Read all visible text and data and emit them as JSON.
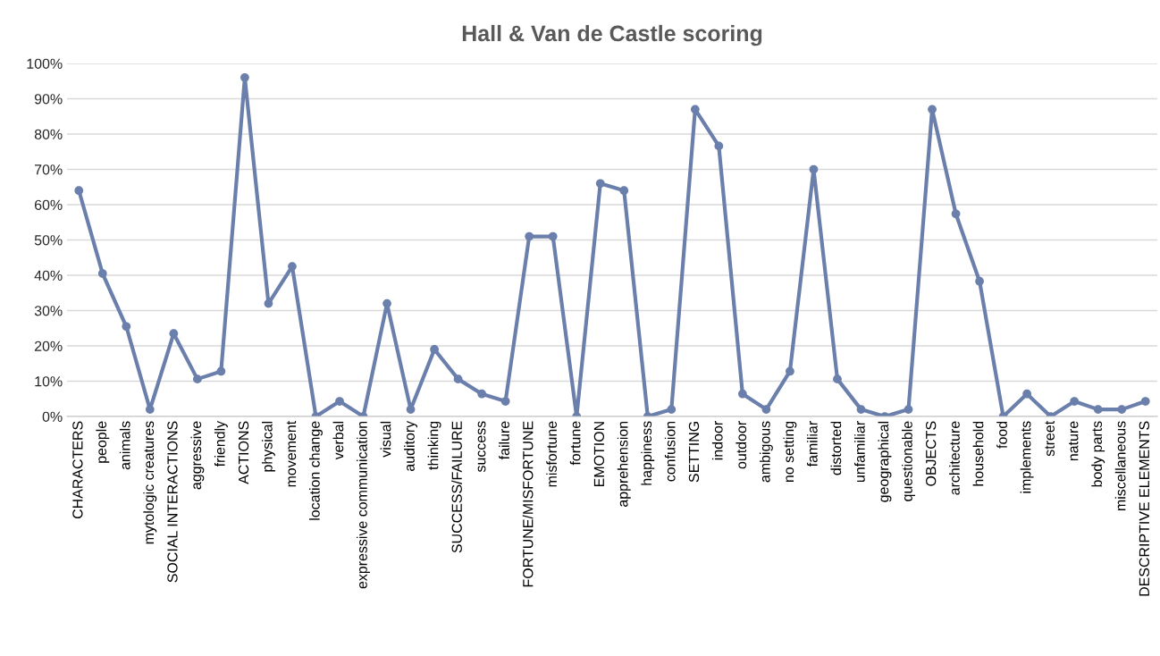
{
  "chart_data": {
    "type": "line",
    "title": "Hall & Van de Castle scoring",
    "categories": [
      "CHARACTERS",
      "people",
      "animals",
      "mytologic creatures",
      "SOCIAL INTERACTIONS",
      "aggressive",
      "friendly",
      "ACTIONS",
      "physical",
      "movement",
      "location change",
      "verbal",
      "expressive communication",
      "visual",
      "auditory",
      "thinking",
      "SUCCESS/FAILURE",
      "success",
      "failure",
      "FORTUNE/MISFORTUNE",
      "misfortune",
      "fortune",
      "EMOTION",
      "apprehension",
      "happiness",
      "confusion",
      "SETTING",
      "indoor",
      "outdoor",
      "ambigous",
      "no setting",
      "familiar",
      "distorted",
      "unfamiliar",
      "geographical",
      "questionable",
      "OBJECTS",
      "architecture",
      "household",
      "food",
      "implements",
      "street",
      "nature",
      "body parts",
      "miscellaneous",
      "DESCRIPTIVE ELEMENTS"
    ],
    "series": [
      {
        "color": "#6a7fab",
        "values": [
          64,
          40.5,
          25.5,
          2,
          23.5,
          10.6,
          12.8,
          96,
          32,
          42.5,
          0,
          4.3,
          0,
          32,
          2,
          19,
          10.6,
          6.4,
          4.3,
          51,
          51,
          0,
          66,
          64,
          0,
          2,
          87,
          76.6,
          6.4,
          2,
          12.8,
          70,
          10.6,
          2,
          0,
          2,
          87,
          57.4,
          38.3,
          0,
          6.4,
          0,
          4.3,
          2,
          2,
          4.3
        ]
      }
    ],
    "ylim": [
      0,
      100
    ],
    "yticks": [
      {
        "value": 0,
        "label": "0%"
      },
      {
        "value": 10,
        "label": "10%"
      },
      {
        "value": 20,
        "label": "20%"
      },
      {
        "value": 30,
        "label": "30%"
      },
      {
        "value": 40,
        "label": "40%"
      },
      {
        "value": 50,
        "label": "50%"
      },
      {
        "value": 60,
        "label": "60%"
      },
      {
        "value": 70,
        "label": "70%"
      },
      {
        "value": 80,
        "label": "80%"
      },
      {
        "value": 90,
        "label": "90%"
      },
      {
        "value": 100,
        "label": "100%"
      }
    ],
    "grid": "y",
    "marker": "circle",
    "line_style": "solid"
  }
}
